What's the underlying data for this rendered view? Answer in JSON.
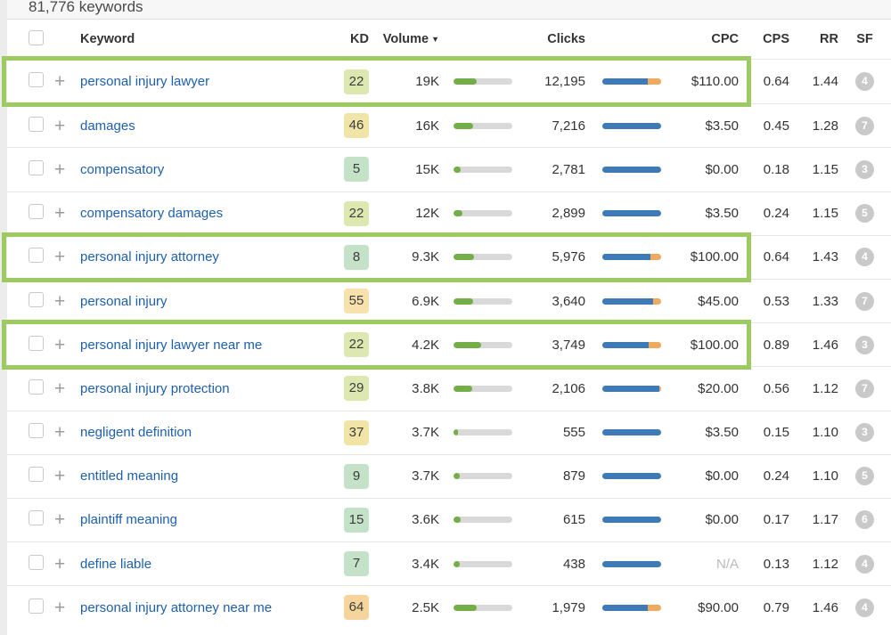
{
  "page": {
    "results_count_label": "81,776 keywords"
  },
  "table": {
    "headers": {
      "keyword": "Keyword",
      "kd": "KD",
      "volume": "Volume",
      "clicks": "Clicks",
      "cpc": "CPC",
      "cps": "CPS",
      "rr": "RR",
      "sf": "SF"
    },
    "sort": {
      "column": "Volume",
      "direction": "desc",
      "icon": "▼"
    },
    "rows": [
      {
        "keyword": "personal injury lawyer",
        "kd": "22",
        "kd_level": "lime",
        "volume": "19K",
        "volume_bar_pct": 40,
        "clicks": "12,195",
        "clicks_blue_pct": 78,
        "clicks_orange_pct": 22,
        "cpc": "$110.00",
        "cps": "0.64",
        "rr": "1.44",
        "sf": "4",
        "highlighted": true
      },
      {
        "keyword": "damages",
        "kd": "46",
        "kd_level": "yellow",
        "volume": "16K",
        "volume_bar_pct": 33,
        "clicks": "7,216",
        "clicks_blue_pct": 100,
        "clicks_orange_pct": 0,
        "cpc": "$3.50",
        "cps": "0.45",
        "rr": "1.28",
        "sf": "7",
        "highlighted": false
      },
      {
        "keyword": "compensatory",
        "kd": "5",
        "kd_level": "green",
        "volume": "15K",
        "volume_bar_pct": 12,
        "clicks": "2,781",
        "clicks_blue_pct": 100,
        "clicks_orange_pct": 0,
        "cpc": "$0.00",
        "cps": "0.18",
        "rr": "1.15",
        "sf": "3",
        "highlighted": false
      },
      {
        "keyword": "compensatory damages",
        "kd": "22",
        "kd_level": "lime",
        "volume": "12K",
        "volume_bar_pct": 15,
        "clicks": "2,899",
        "clicks_blue_pct": 100,
        "clicks_orange_pct": 0,
        "cpc": "$3.50",
        "cps": "0.24",
        "rr": "1.15",
        "sf": "5",
        "highlighted": false
      },
      {
        "keyword": "personal injury attorney",
        "kd": "8",
        "kd_level": "green",
        "volume": "9.3K",
        "volume_bar_pct": 35,
        "clicks": "5,976",
        "clicks_blue_pct": 82,
        "clicks_orange_pct": 18,
        "cpc": "$100.00",
        "cps": "0.64",
        "rr": "1.43",
        "sf": "4",
        "highlighted": true
      },
      {
        "keyword": "personal injury",
        "kd": "55",
        "kd_level": "amber",
        "volume": "6.9K",
        "volume_bar_pct": 33,
        "clicks": "3,640",
        "clicks_blue_pct": 86,
        "clicks_orange_pct": 14,
        "cpc": "$45.00",
        "cps": "0.53",
        "rr": "1.33",
        "sf": "7",
        "highlighted": false
      },
      {
        "keyword": "personal injury lawyer near me",
        "kd": "22",
        "kd_level": "lime",
        "volume": "4.2K",
        "volume_bar_pct": 47,
        "clicks": "3,749",
        "clicks_blue_pct": 79,
        "clicks_orange_pct": 21,
        "cpc": "$100.00",
        "cps": "0.89",
        "rr": "1.46",
        "sf": "3",
        "highlighted": true
      },
      {
        "keyword": "personal injury protection",
        "kd": "29",
        "kd_level": "lime",
        "volume": "3.8K",
        "volume_bar_pct": 32,
        "clicks": "2,106",
        "clicks_blue_pct": 97,
        "clicks_orange_pct": 3,
        "cpc": "$20.00",
        "cps": "0.56",
        "rr": "1.12",
        "sf": "7",
        "highlighted": false
      },
      {
        "keyword": "negligent definition",
        "kd": "37",
        "kd_level": "yellow",
        "volume": "3.7K",
        "volume_bar_pct": 8,
        "clicks": "555",
        "clicks_blue_pct": 100,
        "clicks_orange_pct": 0,
        "cpc": "$3.50",
        "cps": "0.15",
        "rr": "1.10",
        "sf": "3",
        "highlighted": false
      },
      {
        "keyword": "entitled meaning",
        "kd": "9",
        "kd_level": "green",
        "volume": "3.7K",
        "volume_bar_pct": 10,
        "clicks": "879",
        "clicks_blue_pct": 100,
        "clicks_orange_pct": 0,
        "cpc": "$0.00",
        "cps": "0.24",
        "rr": "1.10",
        "sf": "5",
        "highlighted": false
      },
      {
        "keyword": "plaintiff meaning",
        "kd": "15",
        "kd_level": "green",
        "volume": "3.6K",
        "volume_bar_pct": 12,
        "clicks": "615",
        "clicks_blue_pct": 100,
        "clicks_orange_pct": 0,
        "cpc": "$0.00",
        "cps": "0.17",
        "rr": "1.17",
        "sf": "6",
        "highlighted": false
      },
      {
        "keyword": "define liable",
        "kd": "7",
        "kd_level": "green",
        "volume": "3.4K",
        "volume_bar_pct": 10,
        "clicks": "438",
        "clicks_blue_pct": 100,
        "clicks_orange_pct": 0,
        "cpc": "N/A",
        "cps": "0.13",
        "rr": "1.12",
        "sf": "4",
        "highlighted": false
      },
      {
        "keyword": "personal injury attorney near me",
        "kd": "64",
        "kd_level": "orange",
        "volume": "2.5K",
        "volume_bar_pct": 40,
        "clicks": "1,979",
        "clicks_blue_pct": 78,
        "clicks_orange_pct": 22,
        "cpc": "$90.00",
        "cps": "0.79",
        "rr": "1.46",
        "sf": "4",
        "highlighted": false
      }
    ]
  },
  "icons": {
    "plus": "+",
    "sort_desc": "▼"
  },
  "colors": {
    "kd_levels": {
      "green": "#c4e2c8",
      "lime": "#dde8b0",
      "yellow": "#f0e4a6",
      "amber": "#f7e2ad",
      "orange": "#f5d59c"
    },
    "volume_fill": "#74ae48",
    "bar_track": "#d9d9d9",
    "clicks_blue": "#3d7ab6",
    "clicks_orange": "#eeab60",
    "highlight_border": "#9dcb62",
    "sf_badge_bg": "#c9c9c9",
    "keyword_link": "#1e5fae",
    "na_text": "#b9b9b9"
  }
}
